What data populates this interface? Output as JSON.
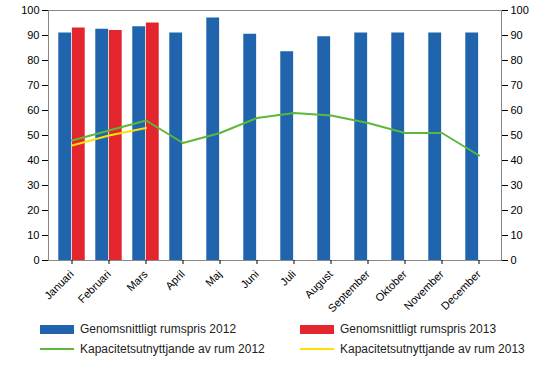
{
  "chart_data": {
    "type": "bar",
    "categories": [
      "Januari",
      "Februari",
      "Mars",
      "April",
      "Maj",
      "Juni",
      "Juli",
      "August",
      "September",
      "Oktober",
      "November",
      "December"
    ],
    "series": [
      {
        "name": "Genomsnittligt rumspris 2012",
        "type": "bar",
        "color": "#1f64ad",
        "values": [
          91,
          92.5,
          93.5,
          91,
          97,
          90.5,
          83.5,
          89.5,
          91,
          91,
          91,
          91
        ]
      },
      {
        "name": "Genomsnittligt rumspris 2013",
        "type": "bar",
        "color": "#e3262d",
        "values": [
          93,
          92,
          95,
          null,
          null,
          null,
          null,
          null,
          null,
          null,
          null,
          null
        ]
      },
      {
        "name": "Kapacitetsutnyttjande av rum 2012",
        "type": "line",
        "color": "#5cb83c",
        "values": [
          48,
          52,
          56,
          47,
          51,
          57,
          59,
          58,
          55,
          51,
          51,
          42
        ]
      },
      {
        "name": "Kapacitetsutnyttjande av rum 2013",
        "type": "line",
        "color": "#ffe000",
        "values": [
          46,
          50,
          53,
          null,
          null,
          null,
          null,
          null,
          null,
          null,
          null,
          null
        ]
      }
    ],
    "ylim": [
      0,
      100
    ],
    "yticks": [
      0,
      10,
      20,
      30,
      40,
      50,
      60,
      70,
      80,
      90,
      100
    ],
    "grid": false,
    "legend": "bottom"
  }
}
